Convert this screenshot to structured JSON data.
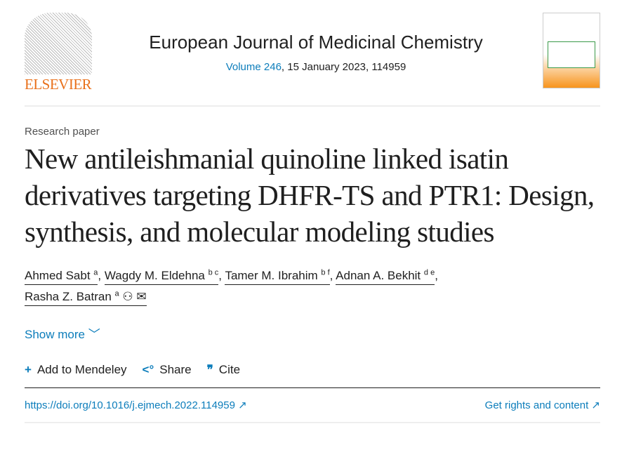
{
  "publisher": {
    "name": "ELSEVIER"
  },
  "journal": {
    "title": "European Journal of Medicinal Chemistry",
    "volume_link": "Volume 246",
    "details": ", 15 January 2023, 114959"
  },
  "article": {
    "type": "Research paper",
    "title": "New antileishmanial quinoline linked isatin derivatives targeting DHFR-TS and PTR1: Design, synthesis, and molecular modeling studies"
  },
  "authors": [
    {
      "name": "Ahmed Sabt",
      "sup": "a"
    },
    {
      "name": "Wagdy M. Eldehna",
      "sup": "b c"
    },
    {
      "name": "Tamer M. Ibrahim",
      "sup": "b f"
    },
    {
      "name": "Adnan A. Bekhit",
      "sup": "d e"
    },
    {
      "name": "Rasha Z. Batran",
      "sup": "a"
    }
  ],
  "show_more": "Show more",
  "actions": {
    "mendeley": "Add to Mendeley",
    "share": "Share",
    "cite": "Cite"
  },
  "doi": "https://doi.org/10.1016/j.ejmech.2022.114959",
  "rights": "Get rights and content",
  "colors": {
    "link": "#0c7dbb",
    "elsevier": "#e9711c"
  }
}
